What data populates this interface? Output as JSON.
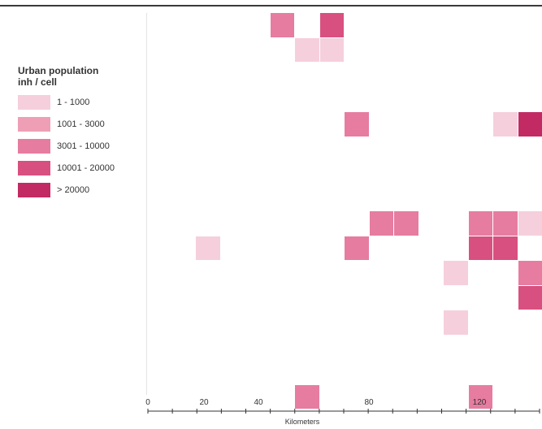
{
  "legend": {
    "title": "Urban population\ninh / cell",
    "classes": [
      {
        "label": "1 - 1000",
        "color": "#f6cfdc"
      },
      {
        "label": "1001 - 3000",
        "color": "#ee9fb6"
      },
      {
        "label": "3001 - 10000",
        "color": "#e67ca0"
      },
      {
        "label": "10001 - 20000",
        "color": "#d8507f"
      },
      {
        "label": "> 20000",
        "color": "#c22a63"
      }
    ]
  },
  "scale_bar": {
    "tick_labels": [
      "0",
      "20",
      "40",
      "80",
      "120"
    ],
    "unit": "Kilometers"
  },
  "map": {
    "background": "#ffffff",
    "cells": [
      {
        "row": 0,
        "col": 5,
        "class": 2
      },
      {
        "row": 0,
        "col": 7,
        "class": 3
      },
      {
        "row": 1,
        "col": 6,
        "class": 0
      },
      {
        "row": 1,
        "col": 7,
        "class": 0
      },
      {
        "row": 4,
        "col": 8,
        "class": 2
      },
      {
        "row": 4,
        "col": 14,
        "class": 0
      },
      {
        "row": 4,
        "col": 15,
        "class": 4
      },
      {
        "row": 8,
        "col": 9,
        "class": 2
      },
      {
        "row": 8,
        "col": 10,
        "class": 2
      },
      {
        "row": 8,
        "col": 13,
        "class": 2
      },
      {
        "row": 8,
        "col": 14,
        "class": 2
      },
      {
        "row": 8,
        "col": 15,
        "class": 0
      },
      {
        "row": 9,
        "col": 2,
        "class": 0
      },
      {
        "row": 9,
        "col": 8,
        "class": 2
      },
      {
        "row": 9,
        "col": 13,
        "class": 3
      },
      {
        "row": 9,
        "col": 14,
        "class": 3
      },
      {
        "row": 10,
        "col": 12,
        "class": 0
      },
      {
        "row": 10,
        "col": 15,
        "class": 2
      },
      {
        "row": 11,
        "col": 15,
        "class": 3
      },
      {
        "row": 12,
        "col": 12,
        "class": 0
      },
      {
        "row": 15,
        "col": 6,
        "class": 2
      },
      {
        "row": 15,
        "col": 13,
        "class": 2
      }
    ]
  }
}
